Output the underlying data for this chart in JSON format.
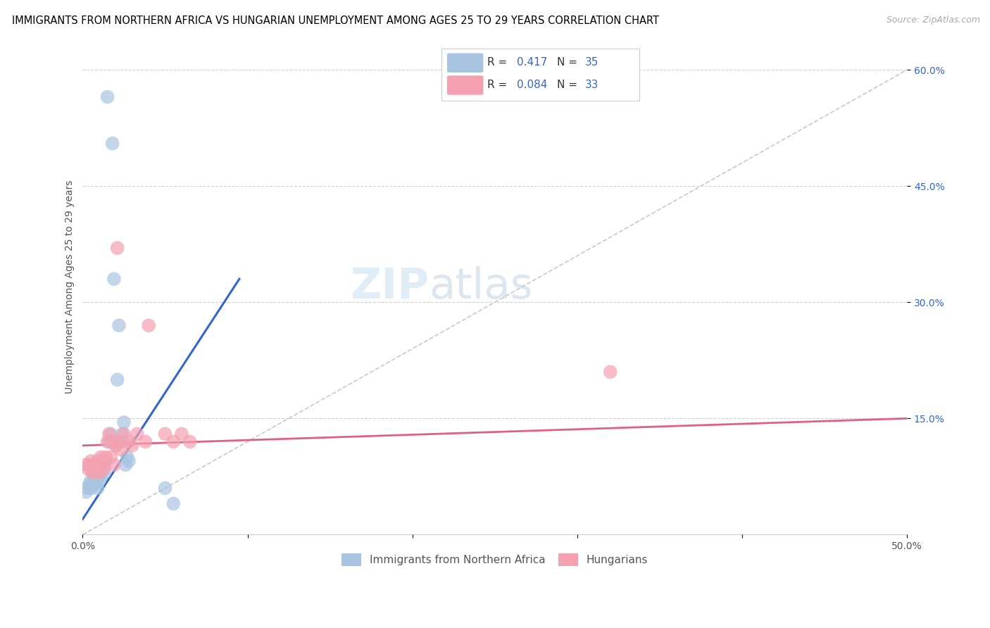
{
  "title": "IMMIGRANTS FROM NORTHERN AFRICA VS HUNGARIAN UNEMPLOYMENT AMONG AGES 25 TO 29 YEARS CORRELATION CHART",
  "source": "Source: ZipAtlas.com",
  "ylabel": "Unemployment Among Ages 25 to 29 years",
  "yaxis_labels": [
    "60.0%",
    "45.0%",
    "30.0%",
    "15.0%"
  ],
  "yaxis_values": [
    0.6,
    0.45,
    0.3,
    0.15
  ],
  "xlim": [
    0.0,
    0.5
  ],
  "ylim": [
    0.0,
    0.64
  ],
  "color_blue": "#a8c4e0",
  "color_pink": "#f4a0b0",
  "line_blue": "#3366cc",
  "line_pink": "#e06080",
  "line_gray": "#c8c8c8",
  "watermark_zip": "ZIP",
  "watermark_atlas": "atlas",
  "blue_scatter_x": [
    0.002,
    0.003,
    0.004,
    0.005,
    0.005,
    0.006,
    0.006,
    0.007,
    0.007,
    0.008,
    0.008,
    0.009,
    0.009,
    0.01,
    0.01,
    0.011,
    0.012,
    0.013,
    0.014,
    0.015,
    0.016,
    0.017,
    0.018,
    0.019,
    0.02,
    0.021,
    0.022,
    0.023,
    0.024,
    0.025,
    0.026,
    0.027,
    0.028,
    0.05,
    0.055
  ],
  "blue_scatter_y": [
    0.055,
    0.06,
    0.065,
    0.06,
    0.07,
    0.065,
    0.08,
    0.07,
    0.09,
    0.065,
    0.08,
    0.06,
    0.075,
    0.07,
    0.085,
    0.075,
    0.09,
    0.08,
    0.095,
    0.565,
    0.12,
    0.13,
    0.505,
    0.33,
    0.115,
    0.2,
    0.27,
    0.12,
    0.13,
    0.145,
    0.09,
    0.1,
    0.095,
    0.06,
    0.04
  ],
  "pink_scatter_x": [
    0.002,
    0.003,
    0.004,
    0.005,
    0.006,
    0.007,
    0.008,
    0.009,
    0.01,
    0.011,
    0.012,
    0.013,
    0.014,
    0.015,
    0.016,
    0.017,
    0.018,
    0.019,
    0.02,
    0.021,
    0.022,
    0.023,
    0.025,
    0.028,
    0.03,
    0.033,
    0.038,
    0.04,
    0.05,
    0.055,
    0.06,
    0.065,
    0.32
  ],
  "pink_scatter_y": [
    0.09,
    0.085,
    0.09,
    0.095,
    0.08,
    0.085,
    0.09,
    0.095,
    0.08,
    0.1,
    0.09,
    0.085,
    0.1,
    0.12,
    0.13,
    0.1,
    0.12,
    0.09,
    0.115,
    0.37,
    0.12,
    0.11,
    0.13,
    0.12,
    0.115,
    0.13,
    0.12,
    0.27,
    0.13,
    0.12,
    0.13,
    0.12,
    0.21
  ],
  "blue_line_x": [
    0.0,
    0.095
  ],
  "blue_line_y": [
    0.02,
    0.33
  ],
  "pink_line_x": [
    0.0,
    0.5
  ],
  "pink_line_y": [
    0.115,
    0.15
  ],
  "gray_line_x": [
    0.0,
    0.53
  ],
  "gray_line_y": [
    0.0,
    0.636
  ],
  "title_fontsize": 10.5,
  "axis_label_fontsize": 10,
  "tick_fontsize": 10
}
